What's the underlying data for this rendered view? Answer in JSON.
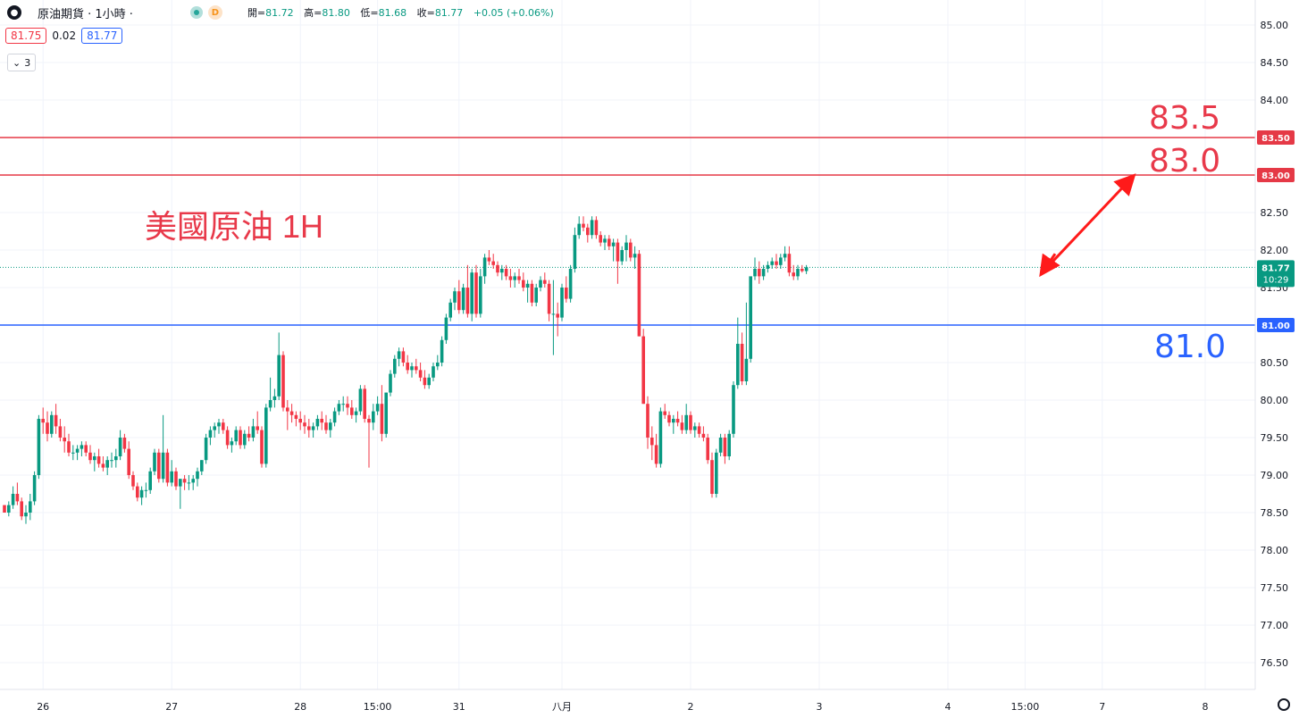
{
  "header": {
    "logo_icon": "oil-drop-icon",
    "symbol": "原油期貨 · 1小時 ·",
    "source_badge": "D",
    "ohlc": [
      {
        "label": "開=",
        "value": "81.72"
      },
      {
        "label": "高=",
        "value": "81.80"
      },
      {
        "label": "低=",
        "value": "81.68"
      },
      {
        "label": "收=",
        "value": "81.77"
      },
      {
        "label": "",
        "value": "+0.05 (+0.06%)"
      }
    ]
  },
  "quote": {
    "bid": "81.75",
    "spread": "0.02",
    "ask": "81.77"
  },
  "indicators_toggle": {
    "icon": "chevron-down-icon",
    "count": "3"
  },
  "annotations": {
    "title": "美國原油 1H",
    "level_83_5": "83.5",
    "level_83_0": "83.0",
    "level_81_0": "81.0"
  },
  "colors": {
    "up": "#089981",
    "down": "#f23645",
    "support": "#2962ff",
    "resistance": "#e53946",
    "arrow": "#ff1a1a"
  },
  "chart_data": {
    "type": "candlestick",
    "ylim": [
      76.25,
      85.2
    ],
    "y_ticks": [
      "85.00",
      "84.50",
      "84.00",
      "83.50",
      "83.00",
      "82.50",
      "82.00",
      "81.50",
      "81.00",
      "80.50",
      "80.00",
      "79.50",
      "79.00",
      "78.50",
      "78.00",
      "77.50",
      "77.00",
      "76.50"
    ],
    "x_ticks": [
      {
        "label": "26",
        "bar": 9
      },
      {
        "label": "27",
        "bar": 39
      },
      {
        "label": "28",
        "bar": 69
      },
      {
        "label": "15:00",
        "bar": 87
      },
      {
        "label": "31",
        "bar": 106
      },
      {
        "label": "八月",
        "bar": 130
      },
      {
        "label": "2",
        "bar": 160
      },
      {
        "label": "3",
        "bar": 190
      },
      {
        "label": "4",
        "bar": 220
      },
      {
        "label": "15:00",
        "bar": 238
      },
      {
        "label": "7",
        "bar": 256
      },
      {
        "label": "8",
        "bar": 280
      }
    ],
    "hlines": [
      {
        "value": 83.5,
        "color": "#e53946",
        "label": "83.50"
      },
      {
        "value": 83.0,
        "color": "#e53946",
        "label": "83.00"
      },
      {
        "value": 81.0,
        "color": "#2962ff",
        "label": "81.00"
      }
    ],
    "last_price": {
      "value": 81.77,
      "label": "81.77",
      "countdown": "10:29"
    },
    "projection": [
      {
        "bar": 245,
        "y": 81.95
      },
      {
        "bar": 242,
        "y": 81.7
      },
      {
        "bar": 263,
        "y": 82.97
      }
    ],
    "candles": [
      [
        78.6,
        78.6,
        78.5,
        78.5
      ],
      [
        78.5,
        78.65,
        78.45,
        78.6
      ],
      [
        78.6,
        78.85,
        78.55,
        78.75
      ],
      [
        78.75,
        78.9,
        78.6,
        78.65
      ],
      [
        78.65,
        78.7,
        78.4,
        78.45
      ],
      [
        78.45,
        78.6,
        78.35,
        78.5
      ],
      [
        78.5,
        78.75,
        78.4,
        78.65
      ],
      [
        78.65,
        79.05,
        78.6,
        79.0
      ],
      [
        79.0,
        79.8,
        78.95,
        79.75
      ],
      [
        79.75,
        79.9,
        79.55,
        79.7
      ],
      [
        79.7,
        79.85,
        79.45,
        79.55
      ],
      [
        79.55,
        79.85,
        79.5,
        79.8
      ],
      [
        79.8,
        79.95,
        79.55,
        79.65
      ],
      [
        79.65,
        79.75,
        79.45,
        79.5
      ],
      [
        79.5,
        79.65,
        79.3,
        79.45
      ],
      [
        79.45,
        79.55,
        79.25,
        79.3
      ],
      [
        79.3,
        79.4,
        79.2,
        79.3
      ],
      [
        79.3,
        79.4,
        79.2,
        79.35
      ],
      [
        79.35,
        79.45,
        79.25,
        79.4
      ],
      [
        79.4,
        79.45,
        79.25,
        79.3
      ],
      [
        79.3,
        79.4,
        79.15,
        79.2
      ],
      [
        79.2,
        79.3,
        79.05,
        79.25
      ],
      [
        79.25,
        79.35,
        79.1,
        79.15
      ],
      [
        79.15,
        79.25,
        79.05,
        79.1
      ],
      [
        79.1,
        79.25,
        79.0,
        79.2
      ],
      [
        79.2,
        79.3,
        79.1,
        79.2
      ],
      [
        79.2,
        79.35,
        79.1,
        79.25
      ],
      [
        79.25,
        79.6,
        79.2,
        79.5
      ],
      [
        79.5,
        79.55,
        79.3,
        79.35
      ],
      [
        79.35,
        79.45,
        78.95,
        79.0
      ],
      [
        79.0,
        79.05,
        78.8,
        78.85
      ],
      [
        78.85,
        78.9,
        78.65,
        78.7
      ],
      [
        78.7,
        78.85,
        78.6,
        78.8
      ],
      [
        78.8,
        78.9,
        78.7,
        78.8
      ],
      [
        78.8,
        79.1,
        78.75,
        79.05
      ],
      [
        79.05,
        79.35,
        79.0,
        79.3
      ],
      [
        79.3,
        79.35,
        78.9,
        78.95
      ],
      [
        78.95,
        79.8,
        78.9,
        79.3
      ],
      [
        79.3,
        79.35,
        78.85,
        78.9
      ],
      [
        78.9,
        79.2,
        78.85,
        79.05
      ],
      [
        79.05,
        79.1,
        78.8,
        78.85
      ],
      [
        78.85,
        78.95,
        78.55,
        78.95
      ],
      [
        78.95,
        79.0,
        78.8,
        78.9
      ],
      [
        78.9,
        79.0,
        78.8,
        78.9
      ],
      [
        78.9,
        79.0,
        78.8,
        78.95
      ],
      [
        78.95,
        79.1,
        78.85,
        79.05
      ],
      [
        79.05,
        79.2,
        79.0,
        79.2
      ],
      [
        79.2,
        79.55,
        79.15,
        79.5
      ],
      [
        79.5,
        79.65,
        79.4,
        79.6
      ],
      [
        79.6,
        79.7,
        79.5,
        79.65
      ],
      [
        79.65,
        79.75,
        79.55,
        79.7
      ],
      [
        79.7,
        79.75,
        79.55,
        79.6
      ],
      [
        79.6,
        79.65,
        79.35,
        79.4
      ],
      [
        79.4,
        79.5,
        79.3,
        79.45
      ],
      [
        79.45,
        79.65,
        79.4,
        79.6
      ],
      [
        79.6,
        79.65,
        79.35,
        79.4
      ],
      [
        79.4,
        79.6,
        79.35,
        79.55
      ],
      [
        79.55,
        79.65,
        79.45,
        79.5
      ],
      [
        79.5,
        79.75,
        79.45,
        79.65
      ],
      [
        79.65,
        79.85,
        79.55,
        79.6
      ],
      [
        79.6,
        79.65,
        79.1,
        79.15
      ],
      [
        79.15,
        79.95,
        79.1,
        79.9
      ],
      [
        79.9,
        80.3,
        79.85,
        80.0
      ],
      [
        80.0,
        80.15,
        79.9,
        80.05
      ],
      [
        80.05,
        80.9,
        80.0,
        80.6
      ],
      [
        80.6,
        80.65,
        79.85,
        79.9
      ],
      [
        79.9,
        80.0,
        79.6,
        79.85
      ],
      [
        79.85,
        79.95,
        79.7,
        79.8
      ],
      [
        79.8,
        79.85,
        79.65,
        79.75
      ],
      [
        79.75,
        79.85,
        79.6,
        79.7
      ],
      [
        79.7,
        79.8,
        79.55,
        79.65
      ],
      [
        79.65,
        79.75,
        79.5,
        79.6
      ],
      [
        79.6,
        79.7,
        79.5,
        79.65
      ],
      [
        79.65,
        79.8,
        79.6,
        79.75
      ],
      [
        79.75,
        79.85,
        79.6,
        79.7
      ],
      [
        79.7,
        79.8,
        79.55,
        79.6
      ],
      [
        79.6,
        79.75,
        79.5,
        79.7
      ],
      [
        79.7,
        79.9,
        79.65,
        79.85
      ],
      [
        79.85,
        80.0,
        79.8,
        79.95
      ],
      [
        79.95,
        80.05,
        79.85,
        79.95
      ],
      [
        79.95,
        80.05,
        79.8,
        79.9
      ],
      [
        79.9,
        80.0,
        79.75,
        79.8
      ],
      [
        79.8,
        79.9,
        79.7,
        79.85
      ],
      [
        79.85,
        80.2,
        79.8,
        80.15
      ],
      [
        80.15,
        80.2,
        79.7,
        79.75
      ],
      [
        79.75,
        79.8,
        79.1,
        79.7
      ],
      [
        79.7,
        79.95,
        79.6,
        79.85
      ],
      [
        79.85,
        80.05,
        79.8,
        79.95
      ],
      [
        79.95,
        80.2,
        79.45,
        79.55
      ],
      [
        79.55,
        80.1,
        79.5,
        80.1
      ],
      [
        80.1,
        80.4,
        80.05,
        80.35
      ],
      [
        80.35,
        80.6,
        80.3,
        80.55
      ],
      [
        80.55,
        80.7,
        80.45,
        80.65
      ],
      [
        80.65,
        80.7,
        80.45,
        80.5
      ],
      [
        80.5,
        80.6,
        80.35,
        80.4
      ],
      [
        80.4,
        80.5,
        80.3,
        80.45
      ],
      [
        80.45,
        80.55,
        80.35,
        80.4
      ],
      [
        80.4,
        80.5,
        80.25,
        80.3
      ],
      [
        80.3,
        80.4,
        80.15,
        80.2
      ],
      [
        80.2,
        80.35,
        80.15,
        80.3
      ],
      [
        80.3,
        80.5,
        80.25,
        80.45
      ],
      [
        80.45,
        80.6,
        80.4,
        80.5
      ],
      [
        80.5,
        80.85,
        80.45,
        80.8
      ],
      [
        80.8,
        81.15,
        80.75,
        81.1
      ],
      [
        81.1,
        81.35,
        81.05,
        81.3
      ],
      [
        81.3,
        81.5,
        81.2,
        81.45
      ],
      [
        81.45,
        81.6,
        81.15,
        81.2
      ],
      [
        81.2,
        81.55,
        81.15,
        81.5
      ],
      [
        81.5,
        81.8,
        81.1,
        81.15
      ],
      [
        81.15,
        81.75,
        81.05,
        81.7
      ],
      [
        81.7,
        81.8,
        81.1,
        81.15
      ],
      [
        81.15,
        81.75,
        81.1,
        81.65
      ],
      [
        81.65,
        81.95,
        81.55,
        81.9
      ],
      [
        81.9,
        82.0,
        81.8,
        81.85
      ],
      [
        81.85,
        81.95,
        81.75,
        81.8
      ],
      [
        81.8,
        81.85,
        81.65,
        81.7
      ],
      [
        81.7,
        81.8,
        81.6,
        81.75
      ],
      [
        81.75,
        81.8,
        81.6,
        81.65
      ],
      [
        81.65,
        81.75,
        81.5,
        81.6
      ],
      [
        81.6,
        81.7,
        81.5,
        81.65
      ],
      [
        81.65,
        81.75,
        81.55,
        81.6
      ],
      [
        81.6,
        81.7,
        81.45,
        81.5
      ],
      [
        81.5,
        81.6,
        81.3,
        81.55
      ],
      [
        81.55,
        81.6,
        81.25,
        81.3
      ],
      [
        81.3,
        81.55,
        81.25,
        81.5
      ],
      [
        81.5,
        81.65,
        81.45,
        81.6
      ],
      [
        81.6,
        81.7,
        81.5,
        81.55
      ],
      [
        81.55,
        81.6,
        81.05,
        81.15
      ],
      [
        81.15,
        81.6,
        80.6,
        81.15
      ],
      [
        81.15,
        81.3,
        80.85,
        81.1
      ],
      [
        81.1,
        81.55,
        81.05,
        81.5
      ],
      [
        81.5,
        81.65,
        81.3,
        81.35
      ],
      [
        81.35,
        81.8,
        81.3,
        81.75
      ],
      [
        81.75,
        82.3,
        81.7,
        82.2
      ],
      [
        82.2,
        82.45,
        82.15,
        82.35
      ],
      [
        82.35,
        82.45,
        82.25,
        82.3
      ],
      [
        82.3,
        82.35,
        82.1,
        82.2
      ],
      [
        82.2,
        82.45,
        82.15,
        82.4
      ],
      [
        82.4,
        82.45,
        82.15,
        82.2
      ],
      [
        82.2,
        82.25,
        82.05,
        82.1
      ],
      [
        82.1,
        82.2,
        82.0,
        82.15
      ],
      [
        82.15,
        82.2,
        82.0,
        82.05
      ],
      [
        82.05,
        82.15,
        81.85,
        82.1
      ],
      [
        82.1,
        82.15,
        81.55,
        81.85
      ],
      [
        81.85,
        82.05,
        81.8,
        82.0
      ],
      [
        82.0,
        82.2,
        81.85,
        82.1
      ],
      [
        82.1,
        82.15,
        81.85,
        81.9
      ],
      [
        81.9,
        82.05,
        81.75,
        81.95
      ],
      [
        81.95,
        82.0,
        80.85,
        80.85
      ],
      [
        80.85,
        80.95,
        79.95,
        79.95
      ],
      [
        79.95,
        80.05,
        79.35,
        79.5
      ],
      [
        79.5,
        79.65,
        79.2,
        79.4
      ],
      [
        79.4,
        79.55,
        79.1,
        79.15
      ],
      [
        79.15,
        79.9,
        79.1,
        79.85
      ],
      [
        79.85,
        79.95,
        79.75,
        79.8
      ],
      [
        79.8,
        79.85,
        79.65,
        79.7
      ],
      [
        79.7,
        79.8,
        79.55,
        79.75
      ],
      [
        79.75,
        79.85,
        79.65,
        79.7
      ],
      [
        79.7,
        79.8,
        79.55,
        79.6
      ],
      [
        79.6,
        79.95,
        79.55,
        79.8
      ],
      [
        79.8,
        79.85,
        79.55,
        79.6
      ],
      [
        79.6,
        79.7,
        79.5,
        79.65
      ],
      [
        79.65,
        79.7,
        79.5,
        79.55
      ],
      [
        79.55,
        79.65,
        79.45,
        79.5
      ],
      [
        79.5,
        79.55,
        79.15,
        79.2
      ],
      [
        79.2,
        79.3,
        78.7,
        78.75
      ],
      [
        78.75,
        79.35,
        78.7,
        79.3
      ],
      [
        79.3,
        79.55,
        79.25,
        79.5
      ],
      [
        79.5,
        79.55,
        79.15,
        79.25
      ],
      [
        79.25,
        79.6,
        79.2,
        79.55
      ],
      [
        79.55,
        80.25,
        79.5,
        80.2
      ],
      [
        80.2,
        81.1,
        80.15,
        80.75
      ],
      [
        80.75,
        80.9,
        80.2,
        80.25
      ],
      [
        80.25,
        81.3,
        80.2,
        80.55
      ],
      [
        80.55,
        81.6,
        80.5,
        81.65
      ],
      [
        81.65,
        81.9,
        81.6,
        81.75
      ],
      [
        81.75,
        81.85,
        81.55,
        81.65
      ],
      [
        81.65,
        81.8,
        81.6,
        81.75
      ],
      [
        81.75,
        81.85,
        81.7,
        81.8
      ],
      [
        81.8,
        81.9,
        81.75,
        81.85
      ],
      [
        81.85,
        81.95,
        81.75,
        81.8
      ],
      [
        81.8,
        81.95,
        81.75,
        81.9
      ],
      [
        81.9,
        82.05,
        81.85,
        81.95
      ],
      [
        81.95,
        82.05,
        81.65,
        81.7
      ],
      [
        81.7,
        81.8,
        81.6,
        81.65
      ],
      [
        81.65,
        81.8,
        81.6,
        81.75
      ],
      [
        81.75,
        81.8,
        81.7,
        81.72
      ],
      [
        81.72,
        81.8,
        81.68,
        81.77
      ]
    ]
  }
}
